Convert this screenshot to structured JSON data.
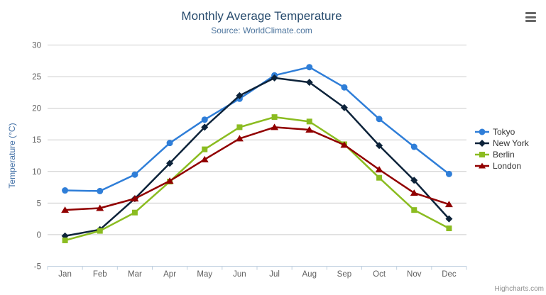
{
  "chart_data": {
    "type": "line",
    "title": "Monthly Average Temperature",
    "subtitle": "Source: WorldClimate.com",
    "xlabel": "",
    "ylabel": "Temperature (°C)",
    "ylim": [
      -5,
      30
    ],
    "ytick_interval": 5,
    "ytick_labels": [
      "-5",
      "0",
      "5",
      "10",
      "15",
      "20",
      "25",
      "30"
    ],
    "grid": true,
    "legend_position": "right",
    "categories": [
      "Jan",
      "Feb",
      "Mar",
      "Apr",
      "May",
      "Jun",
      "Jul",
      "Aug",
      "Sep",
      "Oct",
      "Nov",
      "Dec"
    ],
    "series": [
      {
        "name": "Tokyo",
        "color": "#2f7ed8",
        "marker": "circle",
        "values": [
          7.0,
          6.9,
          9.5,
          14.5,
          18.2,
          21.5,
          25.2,
          26.5,
          23.3,
          18.3,
          13.9,
          9.6
        ]
      },
      {
        "name": "New York",
        "color": "#0d233a",
        "marker": "diamond",
        "values": [
          -0.2,
          0.8,
          5.7,
          11.3,
          17.0,
          22.0,
          24.8,
          24.1,
          20.1,
          14.1,
          8.6,
          2.5
        ]
      },
      {
        "name": "Berlin",
        "color": "#8bbc21",
        "marker": "square",
        "values": [
          -0.9,
          0.6,
          3.5,
          8.4,
          13.5,
          17.0,
          18.6,
          17.9,
          14.3,
          9.0,
          3.9,
          1.0
        ]
      },
      {
        "name": "London",
        "color": "#910000",
        "marker": "triangle",
        "values": [
          3.9,
          4.2,
          5.7,
          8.5,
          11.9,
          15.2,
          17.0,
          16.6,
          14.2,
          10.3,
          6.6,
          4.8
        ]
      }
    ]
  },
  "colors": {
    "title": "#274b6d",
    "subtitle": "#4d759e",
    "axis_title": "#4572a7",
    "tick_label": "#606060",
    "gridline": "#cccccc",
    "axis_line": "#c0d0e0",
    "legend_text": "#333333",
    "credits": "#909090",
    "menu_icon": "#666666"
  },
  "icons": {
    "export_menu": "hamburger-icon"
  },
  "credits": {
    "label": "Highcharts.com"
  }
}
